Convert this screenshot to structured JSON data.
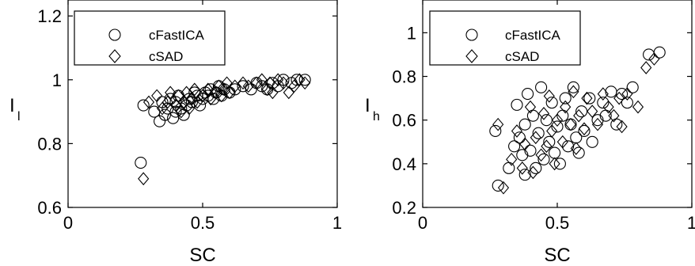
{
  "chart_data": [
    {
      "type": "scatter",
      "xlabel": "SC",
      "ylabel": "I",
      "ylabel_sub": "l",
      "xlim": [
        0,
        1
      ],
      "ylim": [
        0.6,
        1.25
      ],
      "xticks": [
        0,
        0.5,
        1
      ],
      "xtick_labels": [
        "0",
        "0.5",
        "1"
      ],
      "yticks": [
        0.6,
        0.8,
        1,
        1.2
      ],
      "ytick_labels": [
        "0.6",
        "0.8",
        "1",
        "1.2"
      ],
      "grid": false,
      "legend_position": "top-left",
      "series": [
        {
          "name": "cFastICA",
          "marker": "circle",
          "points": [
            [
              0.27,
              0.74
            ],
            [
              0.28,
              0.92
            ],
            [
              0.32,
              0.9
            ],
            [
              0.34,
              0.87
            ],
            [
              0.35,
              0.93
            ],
            [
              0.36,
              0.89
            ],
            [
              0.37,
              0.91
            ],
            [
              0.38,
              0.94
            ],
            [
              0.39,
              0.88
            ],
            [
              0.4,
              0.9
            ],
            [
              0.4,
              0.93
            ],
            [
              0.41,
              0.95
            ],
            [
              0.42,
              0.91
            ],
            [
              0.43,
              0.89
            ],
            [
              0.44,
              0.92
            ],
            [
              0.45,
              0.94
            ],
            [
              0.46,
              0.93
            ],
            [
              0.47,
              0.96
            ],
            [
              0.48,
              0.95
            ],
            [
              0.49,
              0.92
            ],
            [
              0.5,
              0.94
            ],
            [
              0.51,
              0.96
            ],
            [
              0.52,
              0.95
            ],
            [
              0.53,
              0.97
            ],
            [
              0.54,
              0.94
            ],
            [
              0.55,
              0.96
            ],
            [
              0.56,
              0.98
            ],
            [
              0.57,
              0.95
            ],
            [
              0.58,
              0.97
            ],
            [
              0.6,
              0.96
            ],
            [
              0.62,
              0.97
            ],
            [
              0.65,
              0.98
            ],
            [
              0.68,
              0.97
            ],
            [
              0.7,
              0.99
            ],
            [
              0.72,
              0.98
            ],
            [
              0.74,
              0.97
            ],
            [
              0.76,
              0.99
            ],
            [
              0.78,
              0.98
            ],
            [
              0.8,
              1.0
            ],
            [
              0.83,
              0.99
            ],
            [
              0.85,
              1.0
            ],
            [
              0.88,
              1.0
            ]
          ]
        },
        {
          "name": "cSAD",
          "marker": "diamond",
          "points": [
            [
              0.28,
              0.69
            ],
            [
              0.3,
              0.93
            ],
            [
              0.33,
              0.95
            ],
            [
              0.35,
              0.91
            ],
            [
              0.37,
              0.93
            ],
            [
              0.38,
              0.96
            ],
            [
              0.4,
              0.92
            ],
            [
              0.41,
              0.95
            ],
            [
              0.42,
              0.9
            ],
            [
              0.43,
              0.93
            ],
            [
              0.44,
              0.96
            ],
            [
              0.45,
              0.91
            ],
            [
              0.46,
              0.94
            ],
            [
              0.47,
              0.97
            ],
            [
              0.48,
              0.93
            ],
            [
              0.5,
              0.95
            ],
            [
              0.52,
              0.97
            ],
            [
              0.53,
              0.94
            ],
            [
              0.55,
              0.96
            ],
            [
              0.56,
              0.98
            ],
            [
              0.57,
              0.95
            ],
            [
              0.58,
              0.97
            ],
            [
              0.59,
              0.99
            ],
            [
              0.6,
              0.96
            ],
            [
              0.62,
              0.98
            ],
            [
              0.65,
              0.99
            ],
            [
              0.67,
              0.98
            ],
            [
              0.7,
              0.99
            ],
            [
              0.72,
              1.0
            ],
            [
              0.74,
              0.97
            ],
            [
              0.75,
              0.99
            ],
            [
              0.76,
              0.96
            ],
            [
              0.78,
              1.0
            ],
            [
              0.8,
              0.99
            ],
            [
              0.82,
              0.96
            ],
            [
              0.84,
              0.98
            ],
            [
              0.86,
              1.0
            ],
            [
              0.88,
              0.99
            ]
          ]
        }
      ]
    },
    {
      "type": "scatter",
      "xlabel": "SC",
      "ylabel": "I",
      "ylabel_sub": "h",
      "xlim": [
        0,
        1
      ],
      "ylim": [
        0.2,
        1.15
      ],
      "xticks": [
        0,
        0.5,
        1
      ],
      "xtick_labels": [
        "0",
        "0.5",
        "1"
      ],
      "yticks": [
        0.2,
        0.4,
        0.6,
        0.8,
        1
      ],
      "ytick_labels": [
        "0.2",
        "0.4",
        "0.6",
        "0.8",
        "1"
      ],
      "grid": false,
      "legend_position": "top-left",
      "series": [
        {
          "name": "cFastICA",
          "marker": "circle",
          "points": [
            [
              0.27,
              0.55
            ],
            [
              0.28,
              0.3
            ],
            [
              0.32,
              0.38
            ],
            [
              0.34,
              0.48
            ],
            [
              0.35,
              0.67
            ],
            [
              0.36,
              0.52
            ],
            [
              0.37,
              0.44
            ],
            [
              0.38,
              0.35
            ],
            [
              0.38,
              0.58
            ],
            [
              0.39,
              0.72
            ],
            [
              0.4,
              0.46
            ],
            [
              0.41,
              0.62
            ],
            [
              0.42,
              0.38
            ],
            [
              0.43,
              0.54
            ],
            [
              0.44,
              0.75
            ],
            [
              0.45,
              0.42
            ],
            [
              0.46,
              0.6
            ],
            [
              0.47,
              0.5
            ],
            [
              0.48,
              0.68
            ],
            [
              0.49,
              0.45
            ],
            [
              0.5,
              0.57
            ],
            [
              0.51,
              0.4
            ],
            [
              0.52,
              0.62
            ],
            [
              0.53,
              0.7
            ],
            [
              0.54,
              0.48
            ],
            [
              0.55,
              0.58
            ],
            [
              0.56,
              0.75
            ],
            [
              0.57,
              0.52
            ],
            [
              0.58,
              0.45
            ],
            [
              0.59,
              0.64
            ],
            [
              0.6,
              0.55
            ],
            [
              0.62,
              0.7
            ],
            [
              0.63,
              0.5
            ],
            [
              0.65,
              0.6
            ],
            [
              0.67,
              0.68
            ],
            [
              0.68,
              0.62
            ],
            [
              0.7,
              0.73
            ],
            [
              0.72,
              0.58
            ],
            [
              0.74,
              0.72
            ],
            [
              0.76,
              0.68
            ],
            [
              0.78,
              0.75
            ],
            [
              0.84,
              0.9
            ],
            [
              0.88,
              0.91
            ]
          ]
        },
        {
          "name": "cSAD",
          "marker": "diamond",
          "points": [
            [
              0.28,
              0.58
            ],
            [
              0.3,
              0.29
            ],
            [
              0.33,
              0.42
            ],
            [
              0.35,
              0.55
            ],
            [
              0.37,
              0.38
            ],
            [
              0.38,
              0.49
            ],
            [
              0.4,
              0.66
            ],
            [
              0.41,
              0.36
            ],
            [
              0.42,
              0.52
            ],
            [
              0.44,
              0.44
            ],
            [
              0.45,
              0.63
            ],
            [
              0.46,
              0.48
            ],
            [
              0.47,
              0.71
            ],
            [
              0.48,
              0.55
            ],
            [
              0.49,
              0.4
            ],
            [
              0.5,
              0.6
            ],
            [
              0.52,
              0.5
            ],
            [
              0.53,
              0.66
            ],
            [
              0.55,
              0.58
            ],
            [
              0.56,
              0.73
            ],
            [
              0.57,
              0.47
            ],
            [
              0.58,
              0.62
            ],
            [
              0.6,
              0.56
            ],
            [
              0.61,
              0.7
            ],
            [
              0.63,
              0.64
            ],
            [
              0.65,
              0.58
            ],
            [
              0.67,
              0.72
            ],
            [
              0.69,
              0.66
            ],
            [
              0.71,
              0.62
            ],
            [
              0.73,
              0.7
            ],
            [
              0.74,
              0.57
            ],
            [
              0.76,
              0.72
            ],
            [
              0.8,
              0.66
            ],
            [
              0.83,
              0.84
            ],
            [
              0.86,
              0.88
            ]
          ]
        }
      ]
    }
  ]
}
